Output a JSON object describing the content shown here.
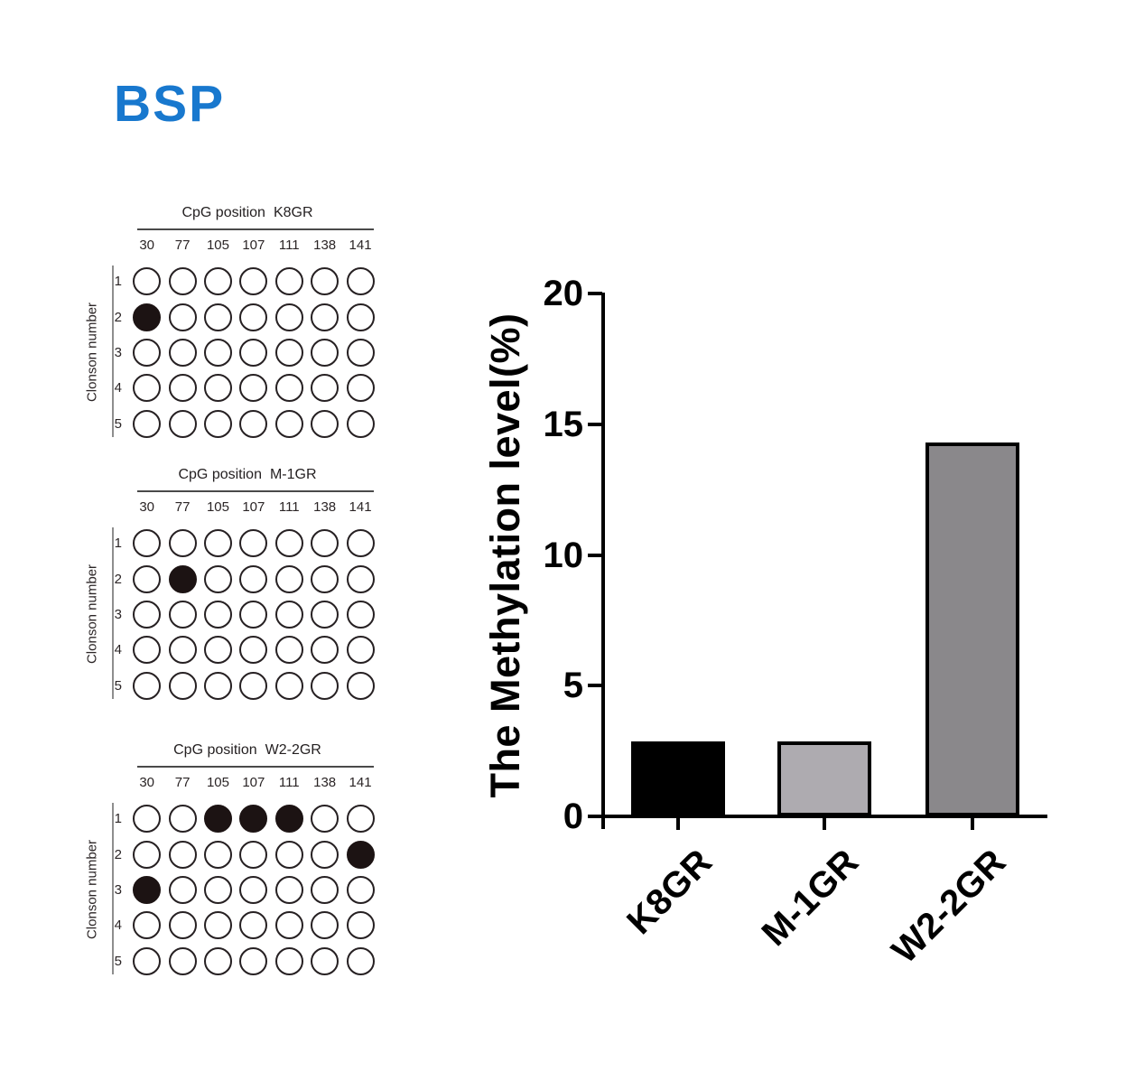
{
  "title": "BSP",
  "title_color": "#1878ce",
  "panels": [
    {
      "title_prefix": "CpG position",
      "sample": "K8GR",
      "positions": [
        "30",
        "77",
        "105",
        "107",
        "111",
        "138",
        "141"
      ],
      "row_axis_label": "Clonson number",
      "clones": [
        "1",
        "2",
        "3",
        "4",
        "5"
      ],
      "filled": [
        [
          1,
          0
        ]
      ]
    },
    {
      "title_prefix": "CpG position",
      "sample": "M-1GR",
      "positions": [
        "30",
        "77",
        "105",
        "107",
        "111",
        "138",
        "141"
      ],
      "row_axis_label": "Clonson number",
      "clones": [
        "1",
        "2",
        "3",
        "4",
        "5"
      ],
      "filled": [
        [
          1,
          1
        ]
      ]
    },
    {
      "title_prefix": "CpG position",
      "sample": "W2-2GR",
      "positions": [
        "30",
        "77",
        "105",
        "107",
        "111",
        "138",
        "141"
      ],
      "row_axis_label": "Clonson number",
      "clones": [
        "1",
        "2",
        "3",
        "4",
        "5"
      ],
      "filled": [
        [
          0,
          2
        ],
        [
          0,
          3
        ],
        [
          0,
          4
        ],
        [
          1,
          6
        ],
        [
          2,
          0
        ]
      ]
    }
  ],
  "chart_data": {
    "type": "bar",
    "categories": [
      "K8GR",
      "M-1GR",
      "W2-2GR"
    ],
    "values": [
      2.86,
      2.86,
      14.29
    ],
    "title": "",
    "xlabel": "",
    "ylabel": "The Methylation level(%)",
    "yticks": [
      0,
      5,
      10,
      15,
      20
    ],
    "ylim": [
      0,
      20
    ],
    "grid": false,
    "legend": "none",
    "bar_colors": [
      "#000000",
      "#aeabb0",
      "#8a888b"
    ],
    "bar_border_color": "#000000"
  }
}
